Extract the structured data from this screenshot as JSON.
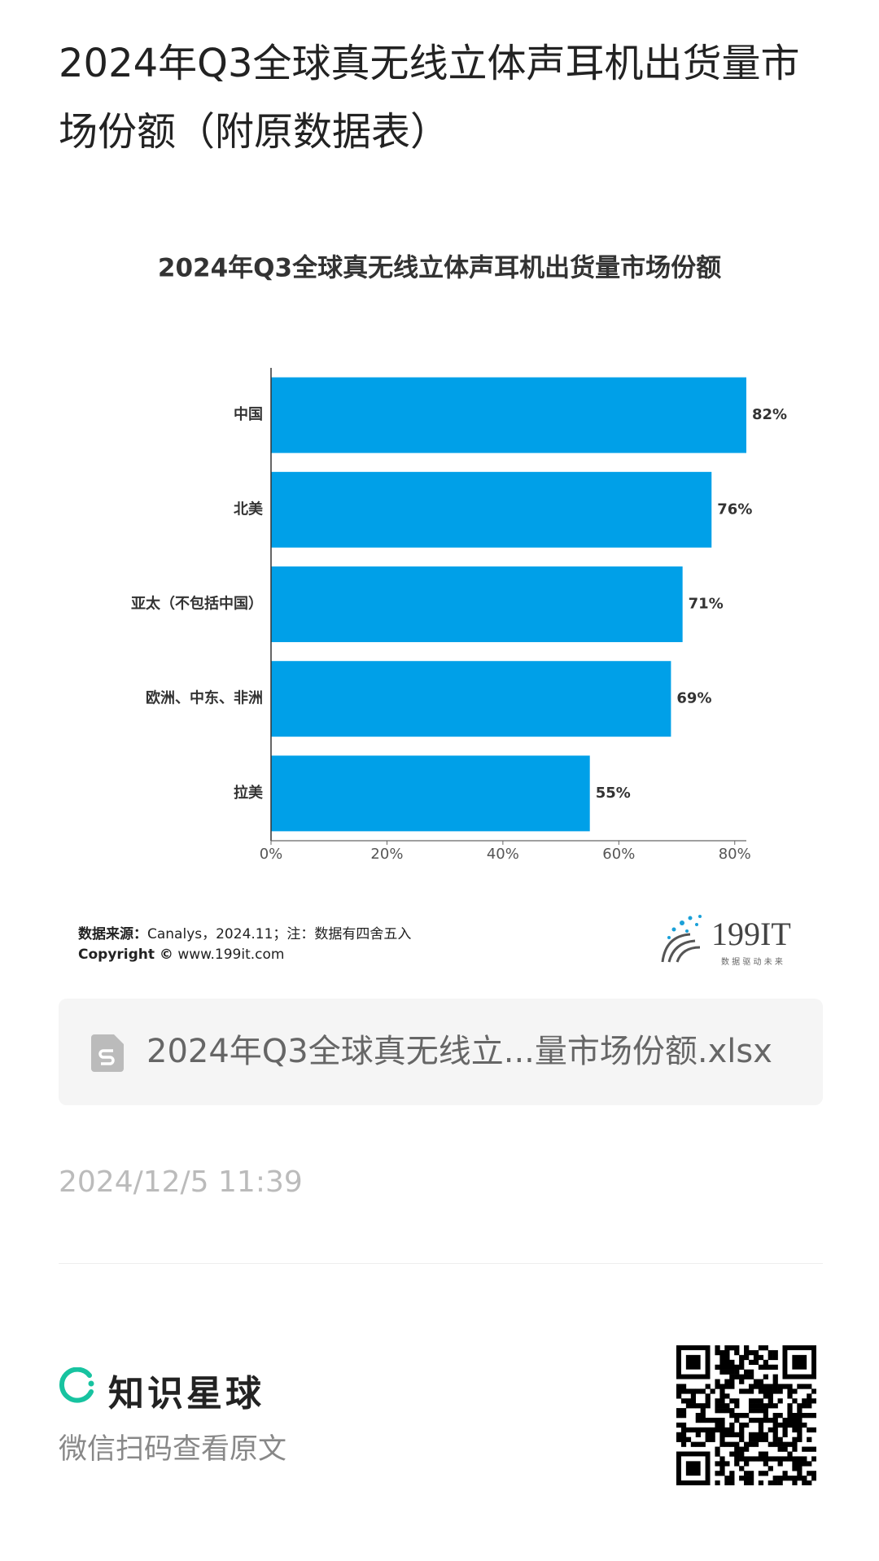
{
  "page_title": "2024年Q3全球真无线立体声耳机出货量市场份额（附原数据表）",
  "chart_data": {
    "type": "bar",
    "orientation": "horizontal",
    "title": "2024年Q3全球真无线立体声耳机出货量市场份额",
    "categories": [
      "中国",
      "北美",
      "亚太（不包括中国）",
      "欧洲、中东、非洲",
      "拉美"
    ],
    "values": [
      82,
      76,
      71,
      69,
      55
    ],
    "value_labels": [
      "82%",
      "76%",
      "71%",
      "69%",
      "55%"
    ],
    "color": "#00a0e8",
    "xlim": [
      0,
      82
    ],
    "xticks": [
      {
        "value": 0,
        "label": "0%"
      },
      {
        "value": 20,
        "label": "20%"
      },
      {
        "value": 40,
        "label": "40%"
      },
      {
        "value": 60,
        "label": "60%"
      },
      {
        "value": 80,
        "label": "80%"
      }
    ]
  },
  "source": {
    "label": "数据来源：",
    "text": "Canalys，2024.11；注：数据有四舍五入"
  },
  "copyright": {
    "label": "Copyright ©",
    "text": "www.199it.com"
  },
  "logo": {
    "name": "199IT",
    "slogan": "数 据 驱 动 未 来"
  },
  "file": {
    "name": "2024年Q3全球真无线立...量市场份额.xlsx"
  },
  "date": "2024/12/5 11:39",
  "footer": {
    "brand": "知识星球",
    "caption": "微信扫码查看原文"
  }
}
